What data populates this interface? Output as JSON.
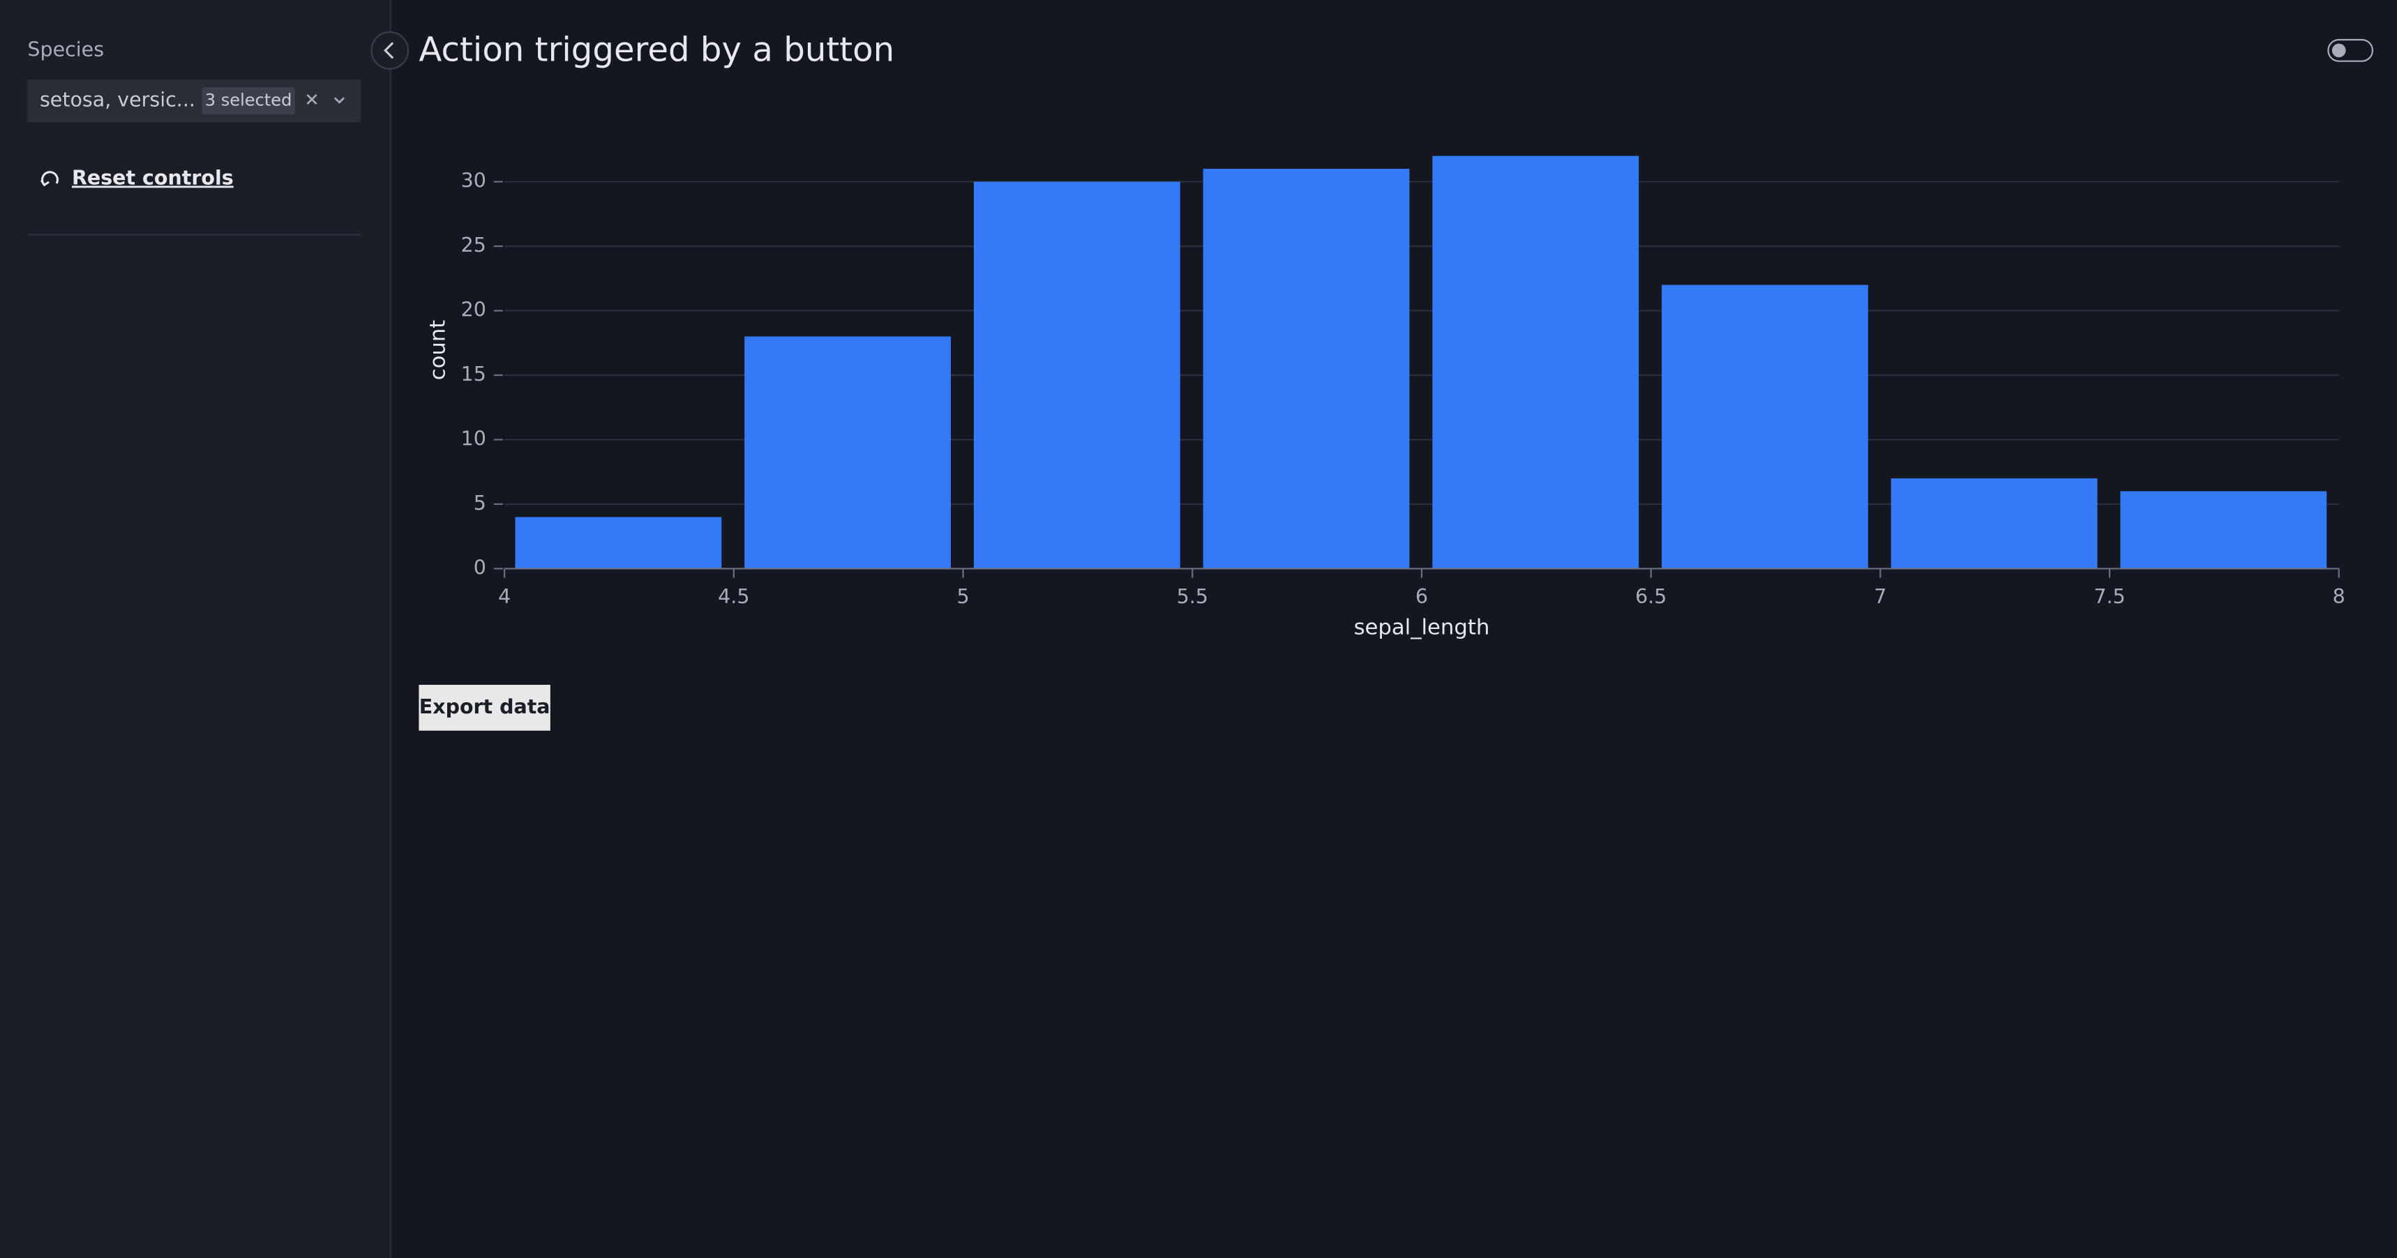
{
  "sidebar": {
    "filter_label": "Species",
    "filter_value": "setosa, versic...",
    "filter_count": "3 selected",
    "reset": "Reset controls"
  },
  "page_title": "Action triggered by a button",
  "chart_data": {
    "type": "histogram",
    "x_label": "sepal_length",
    "y_label": "count",
    "bins": [
      4,
      4.5,
      5,
      5.5,
      6,
      6.5,
      7,
      7.5,
      8
    ],
    "values": [
      4,
      18,
      30,
      31,
      32,
      22,
      7,
      6
    ],
    "color": "#3479f6",
    "xlim": [
      4,
      8
    ],
    "ylim": [
      0,
      32
    ],
    "xticks": [
      4,
      4.5,
      5,
      5.5,
      6,
      6.5,
      7,
      7.5,
      8
    ],
    "yticks": [
      0,
      5,
      10,
      15,
      20,
      25,
      30
    ],
    "grid": true
  },
  "button": "Export data"
}
